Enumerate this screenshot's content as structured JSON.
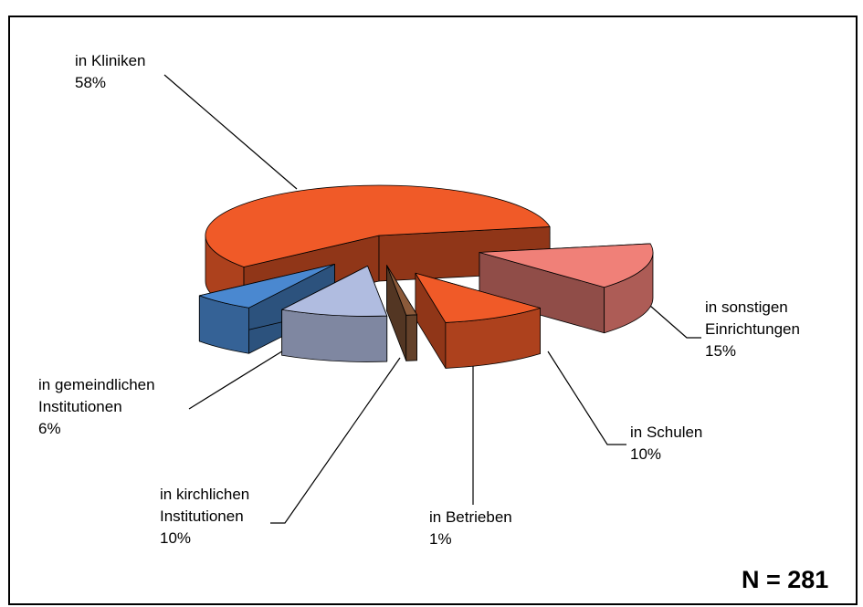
{
  "chart_data": {
    "type": "pie",
    "categories": [
      "in sonstigen\nEinrichtungen",
      "in Schulen",
      "in Betrieben",
      "in kirchlichen\nInstitutionen",
      "in gemeindlichen\nInstitutionen",
      "in Kliniken"
    ],
    "values": [
      15,
      10,
      1,
      10,
      6,
      58
    ],
    "value_labels": [
      "15%",
      "10%",
      "1%",
      "10%",
      "6%",
      "58%"
    ],
    "colors": [
      "#f08078",
      "#f05a28",
      "#8b5a3a",
      "#b0bce0",
      "#4a88d0",
      "#f05a28"
    ],
    "annotation": "N = 281"
  }
}
